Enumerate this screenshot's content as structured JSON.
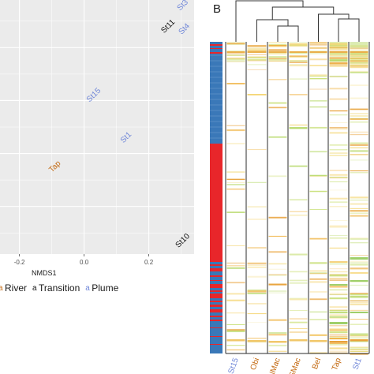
{
  "panel_b_label": "B",
  "legend": {
    "items": [
      {
        "label": "River",
        "color": "#c46a12"
      },
      {
        "label": "Transition",
        "color": "#111111"
      },
      {
        "label": "Plume",
        "color": "#6f86d8"
      }
    ]
  },
  "chart_data": [
    {
      "type": "scatter",
      "xlabel": "NMDS1",
      "ylabel": "",
      "xticks": [
        "-0.2",
        "0.0",
        "0.2"
      ],
      "xlim": [
        -0.26,
        0.34
      ],
      "ylim": [
        -0.38,
        0.58
      ],
      "grid": true,
      "legend_position": "bottom",
      "points": [
        {
          "label": "St3",
          "x": 0.305,
          "y": 0.56,
          "group": "Plume"
        },
        {
          "label": "St11",
          "x": 0.26,
          "y": 0.48,
          "group": "Transition"
        },
        {
          "label": "St4",
          "x": 0.31,
          "y": 0.47,
          "group": "Plume"
        },
        {
          "label": "St15",
          "x": 0.03,
          "y": 0.22,
          "group": "Plume"
        },
        {
          "label": "St1",
          "x": 0.13,
          "y": 0.06,
          "group": "Plume"
        },
        {
          "label": "Tap",
          "x": -0.09,
          "y": -0.05,
          "group": "River"
        },
        {
          "label": "St10",
          "x": 0.305,
          "y": -0.33,
          "group": "Transition"
        }
      ]
    },
    {
      "type": "heatmap",
      "columns": [
        "St15",
        "Obi",
        "NMac",
        "SMac",
        "Bel",
        "Tap",
        "St1"
      ],
      "column_groups": [
        "Plume",
        "River",
        "River",
        "River",
        "River",
        "River",
        "Plume"
      ],
      "row_annotation_colors": {
        "high": "#e8262a",
        "low": "#3a78b8"
      },
      "dendrogram": true
    }
  ]
}
